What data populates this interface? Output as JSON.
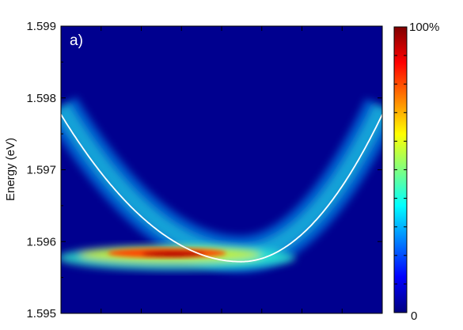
{
  "chart_data": {
    "type": "heatmap",
    "panel_label": "a)",
    "ylabel": "Energy (eV)",
    "xlabel": "",
    "ylim": [
      1.595,
      1.599
    ],
    "y_ticks": [
      "1.599",
      "1.598",
      "1.597",
      "1.596",
      "1.595"
    ],
    "y_tick_values": [
      1.599,
      1.598,
      1.597,
      1.596,
      1.595
    ],
    "x_range": [
      0,
      1
    ],
    "x_minor_ticks": 8,
    "colorbar": {
      "max_label": "100%",
      "min_label": "0",
      "colormap": "jet"
    },
    "fit_curve": {
      "form": "parabola",
      "vertex_x": 0.56,
      "vertex_energy": 1.59572,
      "edge_energy_left": 1.59777,
      "edge_energy_right": 1.59777,
      "color": "#ffffff"
    },
    "intensity_peak": {
      "x_center": 0.33,
      "energy": 1.59584,
      "description_colors": [
        "#7f0000",
        "#ff0000",
        "#ffff00",
        "#00ffff",
        "#0000ff",
        "#00007f"
      ]
    },
    "background_color": "#00008f"
  }
}
